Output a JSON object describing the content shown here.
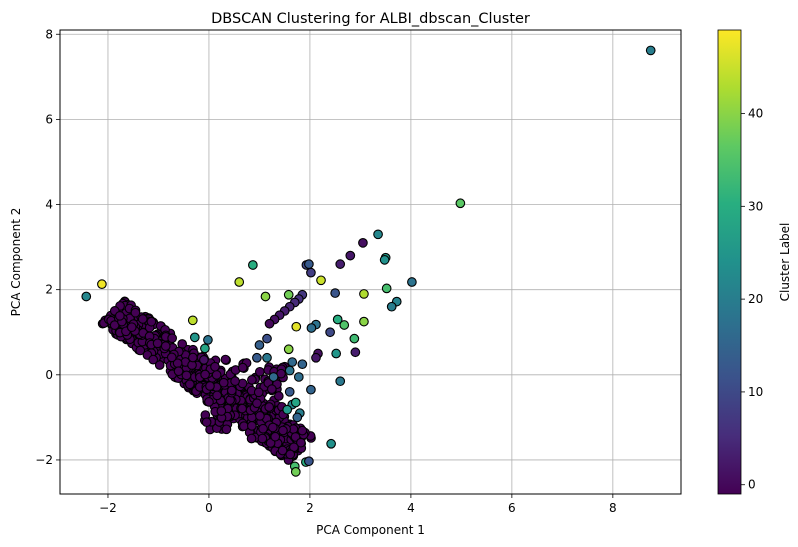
{
  "chart_data": {
    "type": "scatter",
    "title": "DBSCAN Clustering for ALBI_dbscan_Cluster",
    "xlabel": "PCA Component 1",
    "ylabel": "PCA Component 2",
    "xlim": [
      -2.95,
      9.35
    ],
    "ylim": [
      -2.8,
      8.1
    ],
    "xticks": [
      -2,
      0,
      2,
      4,
      6,
      8
    ],
    "yticks": [
      -2,
      0,
      2,
      4,
      6,
      8
    ],
    "grid": true,
    "colormap": "viridis",
    "colorbar": {
      "label": "Cluster Label",
      "range": [
        -1,
        49
      ],
      "ticks": [
        0,
        10,
        20,
        30,
        40
      ]
    },
    "marker_edge_color": "#000000",
    "points": [
      [
        8.75,
        7.62,
        20
      ],
      [
        4.98,
        4.03,
        36
      ],
      [
        3.35,
        3.3,
        22
      ],
      [
        3.05,
        3.1,
        1
      ],
      [
        2.8,
        2.8,
        2
      ],
      [
        2.6,
        2.6,
        3
      ],
      [
        3.5,
        2.75,
        26
      ],
      [
        3.48,
        2.7,
        24
      ],
      [
        4.02,
        2.18,
        18
      ],
      [
        3.52,
        2.03,
        34
      ],
      [
        3.72,
        1.72,
        21
      ],
      [
        3.62,
        1.6,
        20
      ],
      [
        3.07,
        1.9,
        43
      ],
      [
        2.5,
        1.92,
        12
      ],
      [
        2.22,
        2.22,
        45
      ],
      [
        2.02,
        2.4,
        8
      ],
      [
        1.93,
        2.58,
        10
      ],
      [
        1.98,
        2.6,
        13
      ],
      [
        1.58,
        1.88,
        38
      ],
      [
        1.85,
        1.88,
        7
      ],
      [
        1.78,
        1.78,
        6
      ],
      [
        1.7,
        1.7,
        5
      ],
      [
        1.6,
        1.6,
        4
      ],
      [
        1.5,
        1.5,
        3
      ],
      [
        1.4,
        1.4,
        2
      ],
      [
        1.3,
        1.3,
        1
      ],
      [
        1.2,
        1.2,
        0
      ],
      [
        1.12,
        1.84,
        40
      ],
      [
        0.87,
        2.58,
        30
      ],
      [
        0.6,
        2.18,
        44
      ],
      [
        -2.12,
        2.13,
        48
      ],
      [
        -2.43,
        1.84,
        22
      ],
      [
        -0.32,
        1.28,
        44
      ],
      [
        1.73,
        1.13,
        47
      ],
      [
        3.07,
        1.25,
        40
      ],
      [
        2.12,
        1.18,
        18
      ],
      [
        2.03,
        1.1,
        17
      ],
      [
        2.4,
        1.0,
        10
      ],
      [
        2.68,
        1.17,
        35
      ],
      [
        2.55,
        1.3,
        30
      ],
      [
        2.88,
        0.85,
        33
      ],
      [
        2.9,
        0.53,
        3
      ],
      [
        2.52,
        0.5,
        25
      ],
      [
        2.16,
        0.5,
        1
      ],
      [
        2.12,
        0.4,
        2
      ],
      [
        1.15,
        0.85,
        11
      ],
      [
        1.0,
        0.7,
        14
      ],
      [
        1.15,
        0.4,
        19
      ],
      [
        0.95,
        0.4,
        13
      ],
      [
        1.85,
        0.25,
        15
      ],
      [
        1.58,
        0.6,
        40
      ],
      [
        1.65,
        0.3,
        16
      ],
      [
        1.6,
        0.1,
        18
      ],
      [
        1.78,
        -0.05,
        17
      ],
      [
        2.02,
        -0.35,
        15
      ],
      [
        1.28,
        -0.05,
        16
      ],
      [
        2.6,
        -0.15,
        19
      ],
      [
        1.6,
        -0.4,
        13
      ],
      [
        1.65,
        -0.7,
        22
      ],
      [
        1.55,
        -0.82,
        25
      ],
      [
        1.72,
        -0.65,
        28
      ],
      [
        1.8,
        -0.9,
        20
      ],
      [
        1.75,
        -1.0,
        15
      ],
      [
        2.42,
        -1.62,
        24
      ],
      [
        -0.28,
        0.88,
        25
      ],
      [
        -0.02,
        0.82,
        18
      ],
      [
        -0.08,
        0.62,
        28
      ],
      [
        -0.1,
        0.35,
        1
      ],
      [
        1.92,
        -2.05,
        30
      ],
      [
        1.98,
        -2.03,
        12
      ],
      [
        1.7,
        -2.15,
        34
      ],
      [
        1.72,
        -2.28,
        38
      ]
    ]
  }
}
